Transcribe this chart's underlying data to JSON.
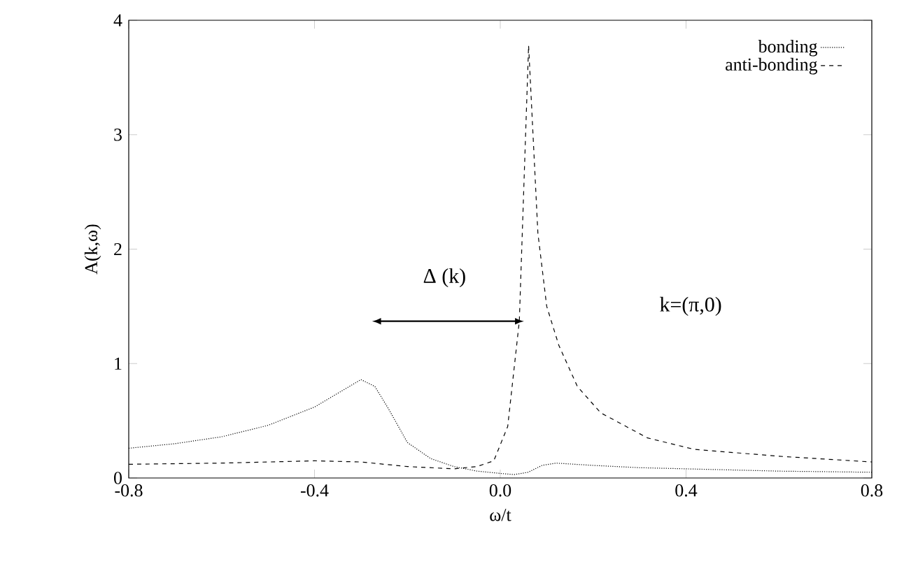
{
  "chart_data": {
    "type": "line",
    "xlabel": "ω/t",
    "ylabel": "A(k,ω)",
    "annotations": [
      "Δ (k)",
      "k=(π,0)"
    ],
    "series": [
      {
        "name": "bonding",
        "color": "#000000",
        "line_style": "dotted",
        "x": [
          -0.8,
          -0.7,
          -0.6,
          -0.5,
          -0.4,
          -0.35,
          -0.3,
          -0.27,
          -0.24,
          -0.2,
          -0.15,
          -0.1,
          -0.05,
          0.0,
          0.03,
          0.06,
          0.09,
          0.12,
          0.2,
          0.3,
          0.4,
          0.6,
          0.8
        ],
        "values": [
          0.26,
          0.3,
          0.36,
          0.46,
          0.62,
          0.74,
          0.86,
          0.8,
          0.6,
          0.31,
          0.17,
          0.1,
          0.06,
          0.04,
          0.03,
          0.05,
          0.11,
          0.13,
          0.11,
          0.09,
          0.08,
          0.06,
          0.05
        ]
      },
      {
        "name": "anti-bonding",
        "color": "#000000",
        "line_style": "dashed",
        "x": [
          -0.8,
          -0.6,
          -0.4,
          -0.3,
          -0.2,
          -0.1,
          -0.05,
          -0.014,
          0.016,
          0.041,
          0.061,
          0.081,
          0.1,
          0.126,
          0.166,
          0.216,
          0.317,
          0.418,
          0.6,
          0.8
        ],
        "values": [
          0.12,
          0.13,
          0.15,
          0.14,
          0.1,
          0.08,
          0.1,
          0.15,
          0.45,
          1.37,
          3.78,
          2.14,
          1.5,
          1.16,
          0.8,
          0.57,
          0.35,
          0.25,
          0.19,
          0.14
        ]
      }
    ],
    "xlim": [
      -0.8,
      0.8
    ],
    "ylim": [
      0,
      4
    ],
    "xticks": [
      -0.8,
      -0.4,
      {
        "value": 0,
        "label": "0.0"
      },
      0.4,
      0.8
    ],
    "yticks": [
      0,
      1,
      2,
      3,
      4
    ],
    "marker": "none",
    "grid": false,
    "legend": "top right"
  }
}
